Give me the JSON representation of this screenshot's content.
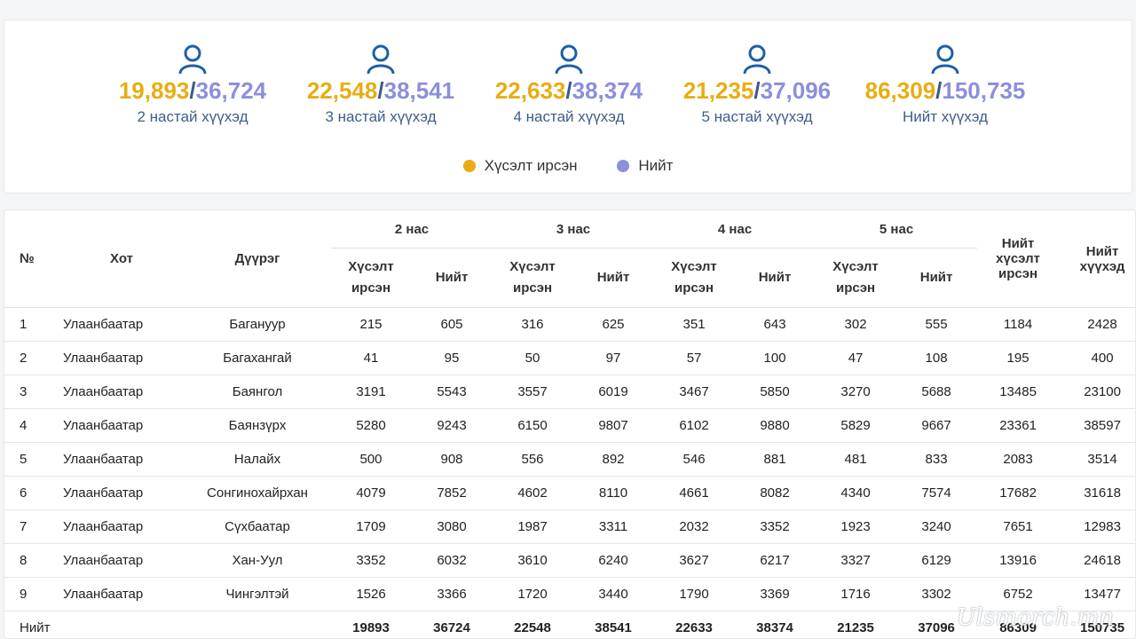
{
  "stats": [
    {
      "requested": "19,893",
      "total": "36,724",
      "label": "2 настай хүүхэд"
    },
    {
      "requested": "22,548",
      "total": "38,541",
      "label": "3 настай хүүхэд"
    },
    {
      "requested": "22,633",
      "total": "38,374",
      "label": "4 настай хүүхэд"
    },
    {
      "requested": "21,235",
      "total": "37,096",
      "label": "5 настай хүүхэд"
    },
    {
      "requested": "86,309",
      "total": "150,735",
      "label": "Нийт хүүхэд"
    }
  ],
  "separator": "/",
  "icon": "user-icon",
  "legend": [
    {
      "label": "Хүсэлт ирсэн",
      "color": "#e8ad12"
    },
    {
      "label": "Нийт",
      "color": "#8b8fdc"
    }
  ],
  "table": {
    "headers": {
      "no": "№",
      "city": "Хот",
      "district": "Дүүрэг",
      "groups": [
        "2 нас",
        "3 нас",
        "4 нас",
        "5 нас"
      ],
      "requested_line1": "Хүсэлт",
      "requested_line2": "ирсэн",
      "total": "Нийт",
      "total_requested": [
        "Нийт",
        "хүсэлт",
        "ирсэн"
      ],
      "total_children": [
        "Нийт",
        "хүүхэд"
      ]
    },
    "rows": [
      [
        "1",
        "Улаанбаатар",
        "Багануур",
        "215",
        "605",
        "316",
        "625",
        "351",
        "643",
        "302",
        "555",
        "1184",
        "2428"
      ],
      [
        "2",
        "Улаанбаатар",
        "Багахангай",
        "41",
        "95",
        "50",
        "97",
        "57",
        "100",
        "47",
        "108",
        "195",
        "400"
      ],
      [
        "3",
        "Улаанбаатар",
        "Баянгол",
        "3191",
        "5543",
        "3557",
        "6019",
        "3467",
        "5850",
        "3270",
        "5688",
        "13485",
        "23100"
      ],
      [
        "4",
        "Улаанбаатар",
        "Баянзүрх",
        "5280",
        "9243",
        "6150",
        "9807",
        "6102",
        "9880",
        "5829",
        "9667",
        "23361",
        "38597"
      ],
      [
        "5",
        "Улаанбаатар",
        "Налайх",
        "500",
        "908",
        "556",
        "892",
        "546",
        "881",
        "481",
        "833",
        "2083",
        "3514"
      ],
      [
        "6",
        "Улаанбаатар",
        "Сонгинохайрхан",
        "4079",
        "7852",
        "4602",
        "8110",
        "4661",
        "8082",
        "4340",
        "7574",
        "17682",
        "31618"
      ],
      [
        "7",
        "Улаанбаатар",
        "Сүхбаатар",
        "1709",
        "3080",
        "1987",
        "3311",
        "2032",
        "3352",
        "1923",
        "3240",
        "7651",
        "12983"
      ],
      [
        "8",
        "Улаанбаатар",
        "Хан-Уул",
        "3352",
        "6032",
        "3610",
        "6240",
        "3627",
        "6217",
        "3327",
        "6129",
        "13916",
        "24618"
      ],
      [
        "9",
        "Улаанбаатар",
        "Чингэлтэй",
        "1526",
        "3366",
        "1720",
        "3440",
        "1790",
        "3369",
        "1716",
        "3302",
        "6752",
        "13477"
      ]
    ],
    "footer": {
      "label": "Нийт",
      "values": [
        "19893",
        "36724",
        "22548",
        "38541",
        "22633",
        "38374",
        "21235",
        "37096",
        "86309",
        "150735"
      ]
    }
  },
  "watermark": "Ulsmorch.mn"
}
